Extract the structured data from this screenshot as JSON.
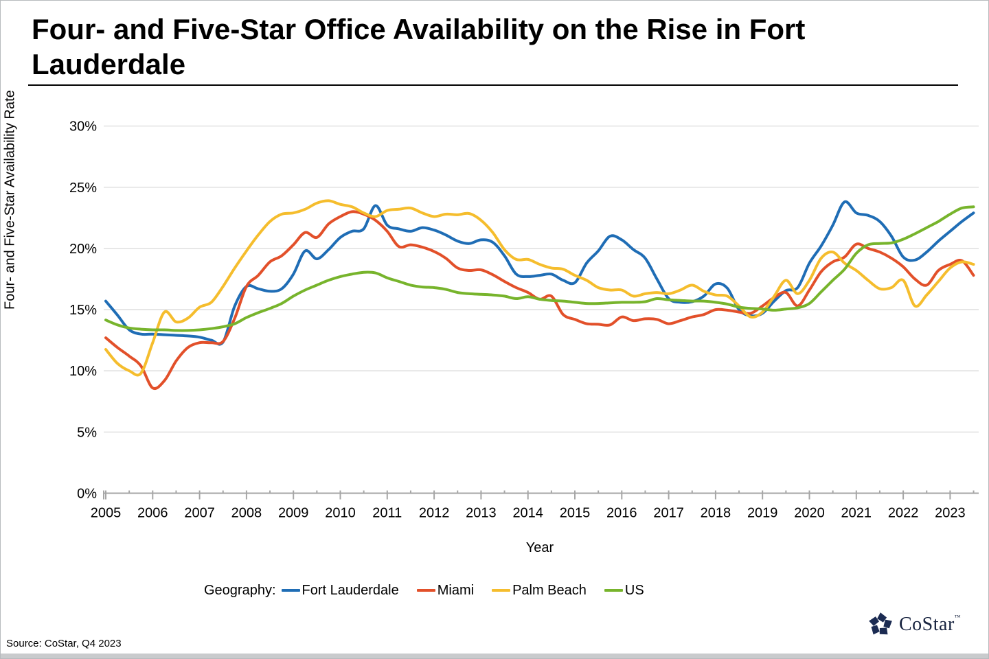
{
  "page": {
    "title_lines": [
      "Four- and Five-Star Office Availability on the Rise in Fort",
      "Lauderdale"
    ],
    "source": "Source: CoStar, Q4 2023"
  },
  "logo": {
    "text": "CoStar",
    "tm": "TM",
    "color": "#1b2b52"
  },
  "chart_data": {
    "type": "line",
    "title": "Four- and Five-Star Office Availability on the Rise in Fort Lauderdale",
    "xlabel": "Year",
    "ylabel": "Four- and Five-Star Availability Rate",
    "legend_label": "Geography:",
    "legend_position": "bottom",
    "grid": true,
    "gridline_color": "#d9d9d9",
    "axis_color": "#a6a6a6",
    "ylim": [
      0,
      30
    ],
    "xlim": [
      2005,
      2023.5
    ],
    "y_ticks": [
      {
        "value": 0,
        "label": "0%"
      },
      {
        "value": 5,
        "label": "5%"
      },
      {
        "value": 10,
        "label": "10%"
      },
      {
        "value": 15,
        "label": "15%"
      },
      {
        "value": 20,
        "label": "20%"
      },
      {
        "value": 25,
        "label": "25%"
      },
      {
        "value": 30,
        "label": "30%"
      }
    ],
    "x_ticks": [
      2005,
      2006,
      2007,
      2008,
      2009,
      2010,
      2011,
      2012,
      2013,
      2014,
      2015,
      2016,
      2017,
      2018,
      2019,
      2020,
      2021,
      2022,
      2023
    ],
    "x_minor_tick_interval": 0.5,
    "x_start": 2005,
    "x_step": 0.25,
    "series": [
      {
        "name": "Fort Lauderdale",
        "color": "#1f6db5",
        "values": [
          15.7,
          14.55,
          13.35,
          13.0,
          13.0,
          12.95,
          12.9,
          12.85,
          12.75,
          12.5,
          12.35,
          15.3,
          16.9,
          16.7,
          16.5,
          16.7,
          17.9,
          19.8,
          19.15,
          19.9,
          20.9,
          21.4,
          21.6,
          23.5,
          21.9,
          21.6,
          21.4,
          21.7,
          21.5,
          21.1,
          20.6,
          20.4,
          20.7,
          20.5,
          19.4,
          17.9,
          17.7,
          17.8,
          17.9,
          17.4,
          17.2,
          18.8,
          19.8,
          21.0,
          20.7,
          19.9,
          19.2,
          17.5,
          15.9,
          15.6,
          15.65,
          16.1,
          17.1,
          16.75,
          15.0,
          14.5,
          14.7,
          15.7,
          16.55,
          16.8,
          18.8,
          20.2,
          21.9,
          23.8,
          22.9,
          22.7,
          22.2,
          21.0,
          19.3,
          19.05,
          19.7,
          20.6,
          21.4,
          22.2,
          22.9
        ]
      },
      {
        "name": "Miami",
        "color": "#e2502a",
        "values": [
          12.7,
          11.9,
          11.2,
          10.4,
          8.6,
          9.2,
          10.8,
          11.9,
          12.3,
          12.3,
          12.4,
          14.3,
          16.9,
          17.8,
          18.9,
          19.4,
          20.3,
          21.3,
          20.9,
          22.0,
          22.6,
          23.0,
          22.8,
          22.3,
          21.4,
          20.15,
          20.3,
          20.1,
          19.75,
          19.2,
          18.4,
          18.2,
          18.25,
          17.85,
          17.3,
          16.8,
          16.4,
          15.85,
          16.1,
          14.6,
          14.2,
          13.85,
          13.8,
          13.75,
          14.4,
          14.1,
          14.25,
          14.2,
          13.85,
          14.1,
          14.4,
          14.6,
          15.0,
          14.95,
          14.8,
          14.7,
          15.3,
          16.0,
          16.4,
          15.3,
          16.6,
          18.1,
          18.9,
          19.3,
          20.35,
          20.0,
          19.7,
          19.2,
          18.5,
          17.5,
          17.0,
          18.2,
          18.7,
          19.0,
          17.8
        ]
      },
      {
        "name": "Palm Beach",
        "color": "#f5bd2d",
        "values": [
          11.75,
          10.6,
          10.0,
          9.8,
          12.3,
          14.8,
          14.0,
          14.3,
          15.2,
          15.6,
          16.9,
          18.4,
          19.8,
          21.1,
          22.2,
          22.8,
          22.9,
          23.2,
          23.7,
          23.9,
          23.6,
          23.4,
          22.9,
          22.6,
          23.1,
          23.2,
          23.3,
          22.9,
          22.6,
          22.8,
          22.75,
          22.85,
          22.3,
          21.3,
          19.9,
          19.1,
          19.1,
          18.7,
          18.4,
          18.3,
          17.8,
          17.4,
          16.8,
          16.6,
          16.6,
          16.1,
          16.3,
          16.4,
          16.3,
          16.6,
          17.0,
          16.5,
          16.2,
          16.1,
          15.3,
          14.4,
          14.8,
          16.1,
          17.4,
          16.3,
          17.4,
          19.2,
          19.7,
          18.8,
          18.2,
          17.4,
          16.7,
          16.8,
          17.4,
          15.3,
          16.2,
          17.3,
          18.4,
          18.9,
          18.7
        ]
      },
      {
        "name": "US",
        "color": "#77b42c",
        "values": [
          14.15,
          13.75,
          13.5,
          13.4,
          13.35,
          13.35,
          13.3,
          13.3,
          13.35,
          13.45,
          13.6,
          13.85,
          14.35,
          14.75,
          15.1,
          15.5,
          16.1,
          16.6,
          17.0,
          17.4,
          17.7,
          17.9,
          18.05,
          18.0,
          17.6,
          17.3,
          17.0,
          16.85,
          16.8,
          16.65,
          16.4,
          16.3,
          16.25,
          16.2,
          16.1,
          15.9,
          16.05,
          15.85,
          15.75,
          15.7,
          15.6,
          15.5,
          15.5,
          15.55,
          15.6,
          15.6,
          15.65,
          15.9,
          15.8,
          15.75,
          15.7,
          15.7,
          15.6,
          15.45,
          15.2,
          15.1,
          15.05,
          14.95,
          15.05,
          15.15,
          15.5,
          16.45,
          17.4,
          18.3,
          19.6,
          20.3,
          20.4,
          20.45,
          20.75,
          21.2,
          21.7,
          22.2,
          22.8,
          23.3,
          23.4
        ]
      }
    ]
  }
}
